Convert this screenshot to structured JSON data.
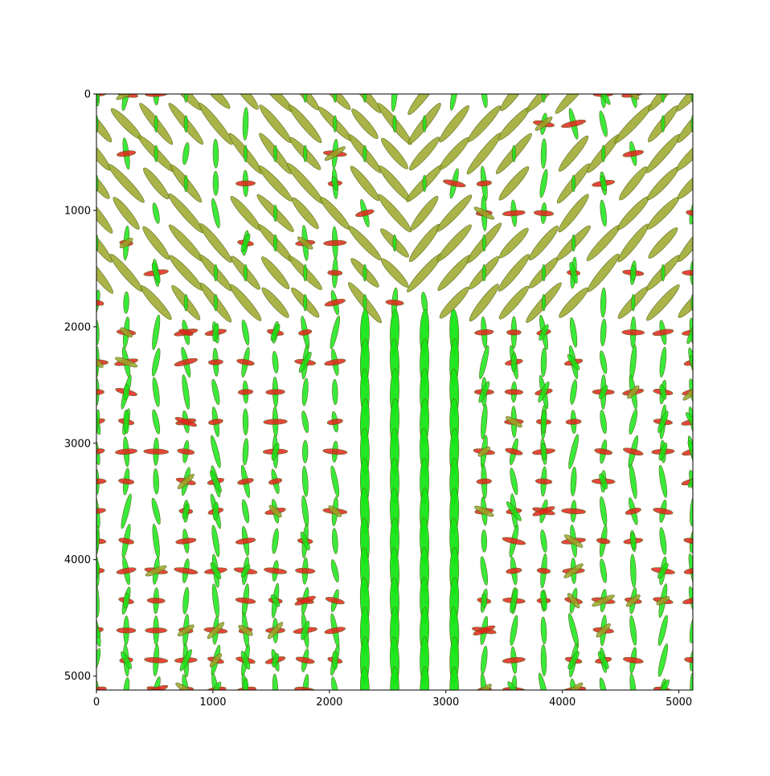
{
  "chart_data": {
    "type": "scatter",
    "description_kind": "glyph-field",
    "title": "",
    "xlabel": "",
    "ylabel": "",
    "xlim": [
      0,
      5120
    ],
    "ylim": [
      5120,
      0
    ],
    "y_inverted": true,
    "grid": false,
    "legend": "none",
    "x_ticks": [
      {
        "value": 0,
        "label": "0"
      },
      {
        "value": 1000,
        "label": "1000"
      },
      {
        "value": 2000,
        "label": "2000"
      },
      {
        "value": 3000,
        "label": "3000"
      },
      {
        "value": 4000,
        "label": "4000"
      },
      {
        "value": 5000,
        "label": "5000"
      }
    ],
    "y_ticks": [
      {
        "value": 0,
        "label": "0"
      },
      {
        "value": 1000,
        "label": "1000"
      },
      {
        "value": 2000,
        "label": "2000"
      },
      {
        "value": 3000,
        "label": "3000"
      },
      {
        "value": 4000,
        "label": "4000"
      },
      {
        "value": 5000,
        "label": "5000"
      }
    ],
    "glyph_grid": {
      "start": 0,
      "step": 256,
      "count": 21
    },
    "colors": {
      "vertical": "#16e616",
      "diagonal": "#9aa628",
      "horizontal": "#e0241a",
      "outline": "#5a6e1e",
      "axis": "#000000"
    }
  }
}
